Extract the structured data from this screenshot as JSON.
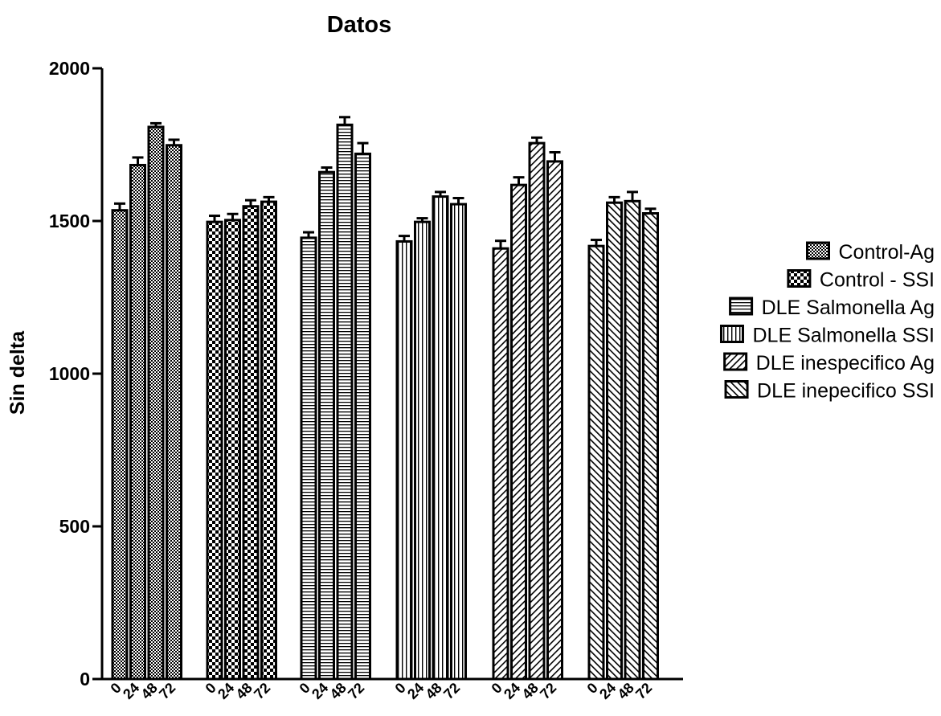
{
  "chart_data": {
    "type": "bar",
    "title": "Datos",
    "xlabel": "",
    "ylabel": "Sin delta",
    "ylim": [
      0,
      2000
    ],
    "yticks": [
      0,
      500,
      1000,
      1500,
      2000
    ],
    "categories": [
      "0",
      "24",
      "48",
      "72"
    ],
    "grid": false,
    "legend_position": "right",
    "series": [
      {
        "name": "Control-Ag",
        "pattern": "dense-grid",
        "values": [
          1535,
          1683,
          1808,
          1748
        ],
        "errors": [
          22,
          25,
          12,
          18
        ]
      },
      {
        "name": "Control - SSI",
        "pattern": "checker",
        "values": [
          1497,
          1503,
          1548,
          1563
        ],
        "errors": [
          20,
          20,
          20,
          15
        ]
      },
      {
        "name": "DLE Salmonella Ag",
        "pattern": "horizontal-lines",
        "values": [
          1445,
          1660,
          1815,
          1720
        ],
        "errors": [
          18,
          15,
          25,
          35
        ]
      },
      {
        "name": "DLE Salmonella SSI",
        "pattern": "vertical-lines",
        "values": [
          1433,
          1497,
          1580,
          1555
        ],
        "errors": [
          18,
          12,
          15,
          20
        ]
      },
      {
        "name": "DLE inespecifico Ag",
        "pattern": "diagonal-up",
        "values": [
          1410,
          1618,
          1755,
          1695
        ],
        "errors": [
          25,
          25,
          18,
          30
        ]
      },
      {
        "name": "DLE inepecifico SSI",
        "pattern": "diagonal-down",
        "values": [
          1418,
          1560,
          1565,
          1525
        ],
        "errors": [
          20,
          18,
          30,
          15
        ]
      }
    ]
  }
}
